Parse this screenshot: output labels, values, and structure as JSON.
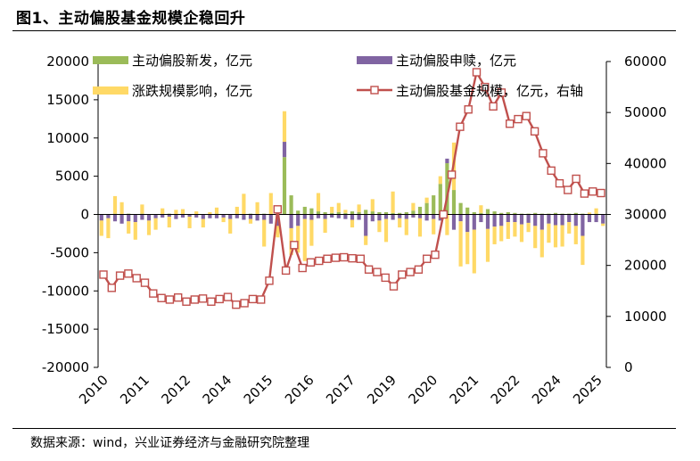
{
  "header": {
    "title": "图1、主动偏股基金规模企稳回升"
  },
  "footer": {
    "source": "数据来源：wind，兴业证券经济与金融研究院整理"
  },
  "colors": {
    "new": "#9BBB59",
    "redeem": "#8064A2",
    "change": "#FFD966",
    "aum": "#C0504D"
  },
  "chart_data": {
    "type": "bar+line",
    "title": "主动偏股基金规模企稳回升",
    "x_labels": [
      "2010",
      "2011",
      "2012",
      "2014",
      "2015",
      "2016",
      "2017",
      "2019",
      "2020",
      "2021",
      "2022",
      "2024",
      "2025"
    ],
    "left_axis": {
      "ylim": [
        -20000,
        20000
      ],
      "ticks": [
        -20000,
        -15000,
        -10000,
        -5000,
        0,
        5000,
        10000,
        15000,
        20000
      ]
    },
    "right_axis": {
      "ylim": [
        0,
        60000
      ],
      "ticks": [
        0,
        10000,
        20000,
        30000,
        40000,
        50000,
        60000
      ]
    },
    "legend": [
      {
        "key": "new",
        "label": "主动偏股新发，亿元"
      },
      {
        "key": "redeem",
        "label": "主动偏股申赎，亿元"
      },
      {
        "key": "change",
        "label": "涨跌规模影响，亿元"
      },
      {
        "key": "aum",
        "label": "主动偏股基金规模，亿元，右轴"
      }
    ],
    "series": {
      "new": [
        0,
        0,
        100,
        0,
        100,
        0,
        100,
        0,
        0,
        0,
        100,
        0,
        0,
        0,
        0,
        0,
        0,
        100,
        0,
        0,
        0,
        0,
        100,
        0,
        100,
        0,
        200,
        7500,
        2500,
        500,
        1000,
        800,
        400,
        300,
        200,
        300,
        200,
        400,
        300,
        600,
        400,
        300,
        300,
        200,
        200,
        300,
        500,
        1000,
        1500,
        2500,
        4000,
        6700,
        3200,
        1500,
        900,
        300,
        200,
        700,
        400,
        200,
        300,
        200,
        100,
        100,
        200,
        100,
        100,
        200,
        100,
        100,
        200,
        100,
        50,
        100,
        50
      ],
      "redeem": [
        -800,
        -500,
        -900,
        -1200,
        -900,
        -1000,
        -700,
        -800,
        -500,
        -400,
        -300,
        -600,
        -400,
        -300,
        -400,
        -600,
        -500,
        -500,
        -400,
        -600,
        -500,
        -700,
        -600,
        -800,
        -700,
        -1200,
        -1500,
        2000,
        -1800,
        -1500,
        -600,
        -700,
        -500,
        -600,
        -400,
        -500,
        -600,
        -700,
        -700,
        -2800,
        -900,
        -800,
        -600,
        -700,
        -500,
        -600,
        -400,
        -500,
        -800,
        -600,
        -800,
        600,
        -2000,
        -900,
        -2300,
        -2000,
        -1000,
        -1900,
        -1600,
        -1500,
        -1000,
        -1000,
        -1300,
        -1100,
        -1500,
        -2000,
        -1200,
        -1400,
        -1400,
        -1000,
        -1500,
        -2800,
        -1000,
        -1000,
        -1200
      ],
      "change": [
        -2000,
        -2600,
        2300,
        1600,
        -1600,
        -2300,
        1200,
        -1900,
        -1500,
        800,
        -1400,
        600,
        700,
        -1500,
        400,
        -1100,
        300,
        800,
        -600,
        -1900,
        1000,
        2700,
        -600,
        1600,
        -3500,
        2800,
        -1500,
        4000,
        -3500,
        -3500,
        -5500,
        -3400,
        2400,
        -1800,
        800,
        1200,
        400,
        -1000,
        1000,
        -1200,
        1600,
        -1500,
        -3000,
        2800,
        -1200,
        -2100,
        1000,
        -2400,
        700,
        -2000,
        1000,
        -2700,
        6200,
        -5900,
        -4200,
        -5700,
        1000,
        -4300,
        -2300,
        -2000,
        -2200,
        -1900,
        -2300,
        -1200,
        -2900,
        -3600,
        -2500,
        -2900,
        -2800,
        -1500,
        -2400,
        -3800,
        200,
        700,
        -300
      ],
      "aum": [
        18200,
        15600,
        18000,
        18400,
        17500,
        16600,
        14500,
        13600,
        13300,
        13700,
        12900,
        13300,
        13500,
        12900,
        13400,
        13800,
        12300,
        12600,
        13400,
        13300,
        17000,
        31000,
        19000,
        24000,
        19500,
        20600,
        20900,
        21300,
        21500,
        21600,
        21400,
        21300,
        19200,
        18700,
        17600,
        15900,
        18200,
        18700,
        19200,
        21300,
        22100,
        30000,
        37800,
        47200,
        50600,
        57900,
        55000,
        51200,
        53900,
        47800,
        48700,
        49300,
        46300,
        42000,
        38600,
        36100,
        34800,
        37000,
        34100,
        34500,
        34200
      ]
    }
  }
}
